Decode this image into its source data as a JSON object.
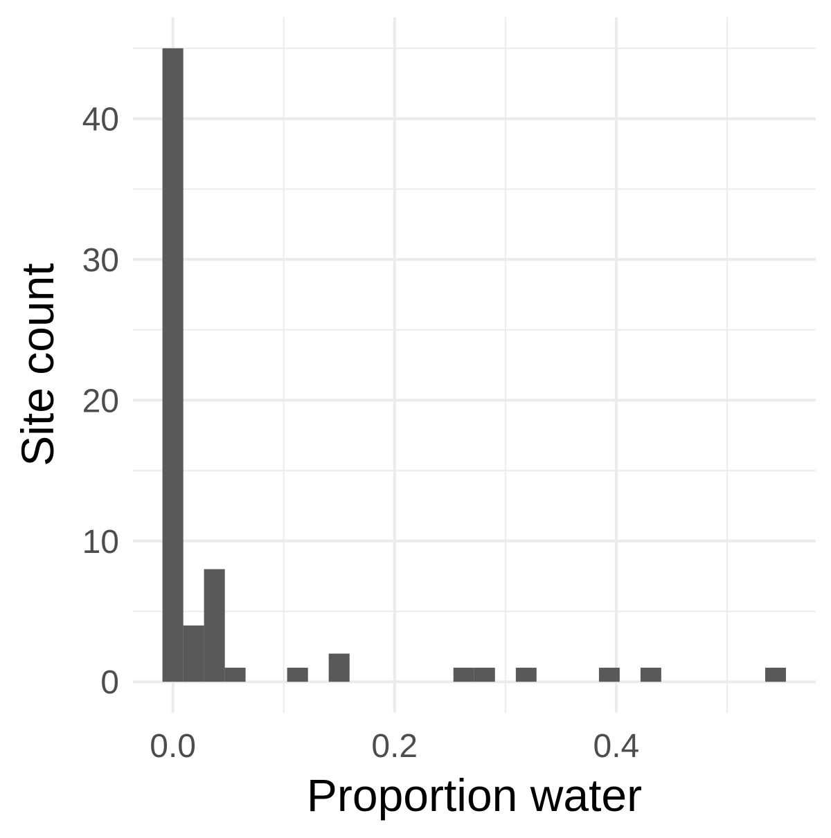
{
  "chart_data": {
    "type": "bar",
    "subtype": "histogram",
    "xlabel": "Proportion water",
    "ylabel": "Site count",
    "x_ticks": [
      "0.0",
      "0.2",
      "0.4"
    ],
    "x_tick_values": [
      0.0,
      0.2,
      0.4
    ],
    "y_ticks": [
      "0",
      "10",
      "20",
      "30",
      "40"
    ],
    "y_tick_values": [
      0,
      10,
      20,
      30,
      40
    ],
    "xlim": [
      -0.036,
      0.58
    ],
    "ylim": [
      -2.2,
      47.2
    ],
    "bin_width": 0.01875,
    "bins": [
      {
        "x0": -0.0094,
        "x1": 0.0094,
        "count": 45
      },
      {
        "x0": 0.0094,
        "x1": 0.0281,
        "count": 4
      },
      {
        "x0": 0.0281,
        "x1": 0.0469,
        "count": 8
      },
      {
        "x0": 0.0469,
        "x1": 0.0656,
        "count": 1
      },
      {
        "x0": 0.1031,
        "x1": 0.1219,
        "count": 1
      },
      {
        "x0": 0.1406,
        "x1": 0.1594,
        "count": 2
      },
      {
        "x0": 0.2531,
        "x1": 0.2719,
        "count": 1
      },
      {
        "x0": 0.2719,
        "x1": 0.2906,
        "count": 1
      },
      {
        "x0": 0.3094,
        "x1": 0.3281,
        "count": 1
      },
      {
        "x0": 0.3844,
        "x1": 0.4031,
        "count": 1
      },
      {
        "x0": 0.4219,
        "x1": 0.4406,
        "count": 1
      },
      {
        "x0": 0.5344,
        "x1": 0.5531,
        "count": 1
      }
    ],
    "grid": true,
    "legend": "none",
    "colors": {
      "bar": "#595959",
      "grid": "#ebebeb",
      "tick_text": "#4d4d4d",
      "title_text": "#000000"
    }
  }
}
